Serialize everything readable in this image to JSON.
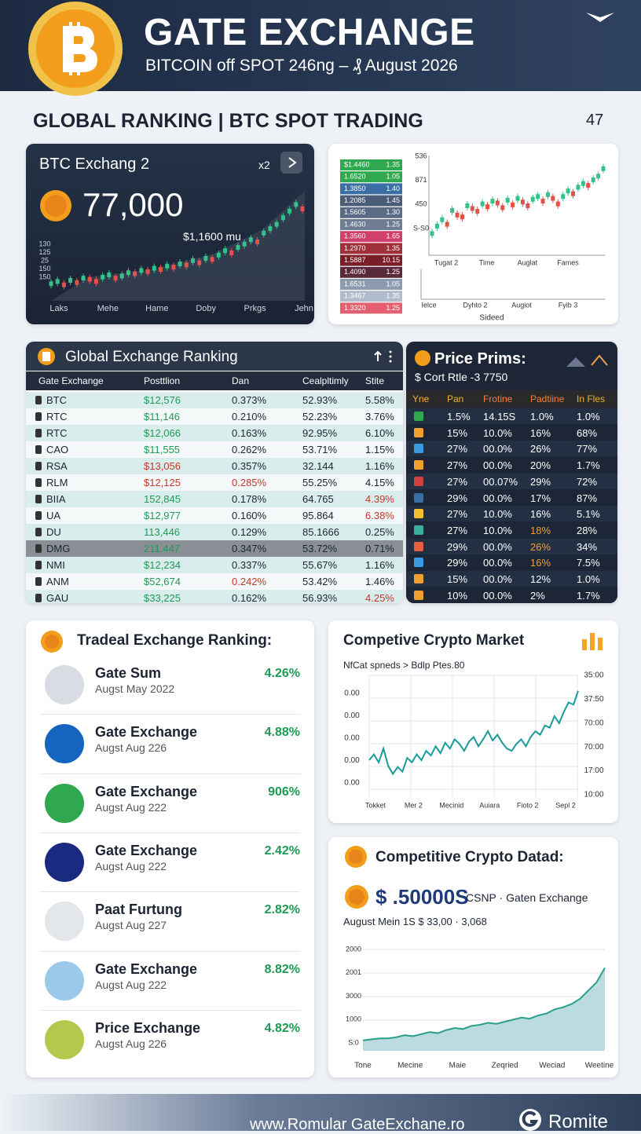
{
  "header": {
    "title": "GATE EXCHANGE",
    "subtitle": "BITCOIN off SPOT 246ng – ₰ August 2026"
  },
  "section": {
    "title": "GLOBAL RANKING | BTC SPOT TRADING",
    "badge": "47"
  },
  "btc_card": {
    "title": "BTC Exchang 2",
    "tag": "x2",
    "price": "77,000",
    "note": "$1,1600 mu",
    "y_labels": [
      "130",
      "125",
      "25",
      "150",
      "150"
    ],
    "x_labels": [
      "Laks",
      "Mehe",
      "Hame",
      "Doby",
      "Prkgs",
      "Jehn"
    ],
    "chart": {
      "ylim": [
        0,
        100
      ],
      "values": [
        12,
        14,
        11,
        15,
        13,
        17,
        16,
        14,
        18,
        20,
        17,
        19,
        22,
        21,
        24,
        23,
        26,
        25,
        28,
        27,
        30,
        29,
        33,
        31,
        35,
        34,
        38,
        42,
        40,
        45,
        48,
        52,
        50,
        58,
        62,
        66,
        72,
        78,
        84,
        80
      ]
    }
  },
  "mini_card": {
    "list": [
      [
        "$1.4460",
        "1.35"
      ],
      [
        "1.6520",
        "1.05"
      ],
      [
        "1.3850",
        "1.40"
      ],
      [
        "1.2085",
        "1.45"
      ],
      [
        "1.5605",
        "1.30"
      ],
      [
        "1.4630",
        "1.25"
      ],
      [
        "1.3560",
        "1.65"
      ],
      [
        "1.2970",
        "1.35"
      ],
      [
        "1.5887",
        "10.15"
      ],
      [
        "1.4090",
        "1.25"
      ],
      [
        "1.6531",
        "1.05"
      ],
      [
        "1.3467",
        "1.35"
      ],
      [
        "1.3320",
        "1.25"
      ]
    ],
    "y_labels": [
      "536",
      "871",
      "450",
      "S-S0"
    ],
    "x_labels": [
      "Tugat 2",
      "Time",
      "Auglat",
      "Fames"
    ],
    "x2_labels": [
      "Ielce",
      "Dyhto 2",
      "Augiot",
      "Fyib 3"
    ],
    "axis_title": "Sideed",
    "chart": {
      "ylim": [
        0,
        100
      ],
      "values": [
        20,
        28,
        35,
        30,
        45,
        40,
        38,
        50,
        47,
        44,
        52,
        49,
        55,
        53,
        48,
        56,
        51,
        58,
        54,
        50,
        57,
        60,
        55,
        62,
        58,
        52,
        60,
        66,
        63,
        70,
        74,
        72,
        78,
        82,
        90
      ]
    }
  },
  "ranking_table": {
    "title": "Global Exchange Ranking",
    "columns": [
      "Gate Exchange",
      "Posttlion",
      "Dan",
      "Cealpltimly",
      "Stite"
    ],
    "rows": [
      [
        "BTC",
        "$12,576",
        "0.373%",
        "52.93%",
        "5.58%"
      ],
      [
        "RTC",
        "$11,146",
        "0.210%",
        "52.23%",
        "3.76%"
      ],
      [
        "RTC",
        "$12,066",
        "0.163%",
        "92.95%",
        "6.10%"
      ],
      [
        "CAO",
        "$11,555",
        "0.262%",
        "53.71%",
        "1.15%"
      ],
      [
        "RSA",
        "$13,056",
        "0.357%",
        "32.144",
        "1.16%"
      ],
      [
        "RLM",
        "$12,125",
        "0.285%",
        "55.25%",
        "4.15%"
      ],
      [
        "BIIA",
        "152,845",
        "0.178%",
        "64.765",
        "4.39%"
      ],
      [
        "UA",
        "$12,977",
        "0.160%",
        "95.864",
        "6.38%"
      ],
      [
        "DU",
        "113,446",
        "0.129%",
        "85.1666",
        "0.25%"
      ],
      [
        "DMG",
        "211.447",
        "0.347%",
        "53.72%",
        "0.71%"
      ],
      [
        "NMI",
        "$12,234",
        "0.337%",
        "55.67%",
        "1.16%"
      ],
      [
        "ANM",
        "$52,674",
        "0.242%",
        "53.42%",
        "1.46%"
      ],
      [
        "GAU",
        "$33,225",
        "0.162%",
        "56.93%",
        "4.25%"
      ]
    ]
  },
  "price_table": {
    "title": "Price Prims:",
    "subtitle": "$ Cort Rtle -3 7750",
    "columns": [
      "Yne",
      "Pan",
      "Frotine",
      "Padtiine",
      "In Fles"
    ],
    "rows": [
      [
        "1.5%",
        "14.15S",
        "1.0%",
        "1.0%"
      ],
      [
        "15%",
        "10.0%",
        "16%",
        "68%"
      ],
      [
        "27%",
        "00.0%",
        "26%",
        "77%"
      ],
      [
        "27%",
        "00.0%",
        "20%",
        "1.7%"
      ],
      [
        "27%",
        "00.07%",
        "29%",
        "72%"
      ],
      [
        "29%",
        "00.0%",
        "17%",
        "87%"
      ],
      [
        "27%",
        "10.0%",
        "16%",
        "5.1%"
      ],
      [
        "27%",
        "10.0%",
        "18%",
        "28%"
      ],
      [
        "29%",
        "00.0%",
        "26%",
        "34%"
      ],
      [
        "29%",
        "00.0%",
        "16%",
        "7.5%"
      ],
      [
        "15%",
        "00.0%",
        "12%",
        "1.0%"
      ],
      [
        "10%",
        "00.0%",
        "2%",
        "1.7%"
      ]
    ]
  },
  "trade_list": {
    "title": "Tradeal Exchange Ranking:",
    "items": [
      {
        "name": "Gate Sum",
        "date": "Augst May 2022",
        "pct": "4.26%"
      },
      {
        "name": "Gate Exchange",
        "date": "Augst Aug 226",
        "pct": "4.88%"
      },
      {
        "name": "Gate Exchange",
        "date": "Augst Aug 222",
        "pct": "906%"
      },
      {
        "name": "Gate Exchange",
        "date": "Augst Aug 222",
        "pct": "2.42%"
      },
      {
        "name": "Paat Furtung",
        "date": "Augst Aug 227",
        "pct": "2.82%"
      },
      {
        "name": "Gate Exchange",
        "date": "Augst Aug 222",
        "pct": "8.82%"
      },
      {
        "name": "Price Exchange",
        "date": "Augst Aug 226",
        "pct": "4.82%"
      }
    ]
  },
  "market_card": {
    "title": "Competive Crypto Market",
    "subtitle": "NfCat spneds  >  Bdlp Ptes.80",
    "y_labels": [
      "0.00",
      "0.00",
      "0.00",
      "0.00",
      "0.00"
    ],
    "y2_labels": [
      "35:00",
      "37:50",
      "70:00",
      "70:00",
      "17:00",
      "10:00"
    ],
    "x_labels": [
      "Tokket",
      "Mer 2",
      "Mecinid",
      "Auiara",
      "Fioto 2",
      "Sepl 2"
    ],
    "chart": {
      "ylim": [
        0,
        100
      ],
      "values": [
        30,
        35,
        28,
        40,
        25,
        18,
        24,
        20,
        32,
        28,
        35,
        30,
        38,
        34,
        42,
        36,
        45,
        40,
        48,
        44,
        38,
        46,
        50,
        42,
        48,
        55,
        47,
        52,
        45,
        40,
        38,
        44,
        48,
        42,
        50,
        55,
        52,
        60,
        58,
        68,
        62,
        72,
        80,
        78,
        90
      ]
    }
  },
  "data_card": {
    "title": "Competitive Crypto Datad:",
    "price": "$ .50000S",
    "note": "CSNP · Gaten Exchange",
    "subtitle": "August Mein 1S $ 33,00 · 3,068",
    "y_labels": [
      "2000",
      "2001",
      "3000",
      "1000",
      "S:0"
    ],
    "x_labels": [
      "Tone",
      "Mecine",
      "Maie",
      "Zeqried",
      "Weciad",
      "Weetine"
    ],
    "chart": {
      "ylim": [
        0,
        100
      ],
      "values": [
        10,
        11,
        12,
        12,
        13,
        15,
        14,
        16,
        18,
        17,
        20,
        22,
        21,
        24,
        25,
        27,
        26,
        28,
        30,
        32,
        31,
        34,
        36,
        40,
        42,
        45,
        50,
        58,
        66,
        80
      ]
    }
  },
  "footer": {
    "url": "www.Romular GateExchane.ro",
    "brand": "Romite"
  }
}
